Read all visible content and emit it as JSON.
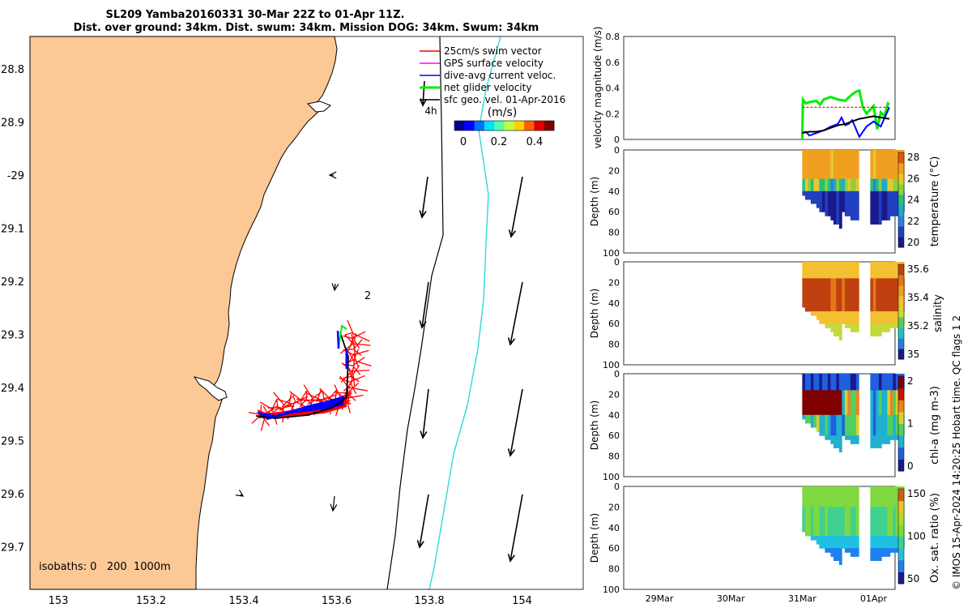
{
  "title": {
    "line1": "SL209 Yamba20160331 30-Mar 22Z to 01-Apr 11Z.",
    "line2": "Dist. over ground: 34km. Dist. swum: 34km. Mission DOG: 34km. Swum: 34km"
  },
  "map": {
    "lat_ticks": [
      "28.8",
      "28.9",
      "-29",
      "29.1",
      "29.2",
      "29.3",
      "29.4",
      "29.5",
      "29.6",
      "29.7"
    ],
    "lon_ticks": [
      "153",
      "153.2",
      "153.4",
      "153.6",
      "153.8",
      "154"
    ],
    "legend": [
      {
        "label": "25cm/s swim vector",
        "color": "#ff0000"
      },
      {
        "label": "GPS surface velocity",
        "color": "#ff00ff"
      },
      {
        "label": "dive-avg current veloc.",
        "color": "#0000ff"
      },
      {
        "label": "net glider velocity",
        "color": "#00ee00"
      },
      {
        "label": "sfc geo. vel. 01-Apr-2016",
        "color": "#000000"
      }
    ],
    "colorbar_label": "(m/s)",
    "colorbar_ticks": [
      "0",
      "0.2",
      "0.4"
    ],
    "isobaths_label": "isobaths: 0   200  1000m",
    "annotation_4h": "4h",
    "annotation_2": "2",
    "land_color": "#fcc896"
  },
  "chart_data": [
    {
      "type": "line",
      "ylabel": "velocity magnitude (m/s)",
      "ylim": [
        0,
        0.8
      ],
      "yticks": [
        "0",
        "0.2",
        "0.4",
        "0.6",
        "0.8"
      ],
      "x_categories": [
        "29Mar",
        "30Mar",
        "31Mar",
        "01Apr"
      ],
      "x_range_days": [
        28.5,
        32.3
      ],
      "series": [
        {
          "color": "#00ee00",
          "x": [
            31.0,
            31.01,
            31.05,
            31.1,
            31.2,
            31.25,
            31.3,
            31.4,
            31.5,
            31.6,
            31.7,
            31.75,
            31.8,
            31.85,
            31.9,
            32.0,
            32.05,
            32.1,
            32.15,
            32.2,
            32.22
          ],
          "y": [
            0.0,
            0.31,
            0.28,
            0.29,
            0.3,
            0.27,
            0.31,
            0.33,
            0.31,
            0.3,
            0.35,
            0.37,
            0.38,
            0.25,
            0.2,
            0.26,
            0.08,
            0.21,
            0.18,
            0.28,
            0.27
          ]
        },
        {
          "color": "#0000ff",
          "x": [
            31.0,
            31.05,
            31.1,
            31.2,
            31.3,
            31.4,
            31.5,
            31.55,
            31.6,
            31.65,
            31.7,
            31.8,
            31.9,
            32.0,
            32.1,
            32.22
          ],
          "y": [
            0.05,
            0.06,
            0.03,
            0.05,
            0.07,
            0.1,
            0.12,
            0.17,
            0.11,
            0.12,
            0.15,
            0.02,
            0.1,
            0.14,
            0.1,
            0.25
          ]
        },
        {
          "color": "#000000",
          "x": [
            31.0,
            31.1,
            31.2,
            31.3,
            31.4,
            31.5,
            31.6,
            31.7,
            31.8,
            31.9,
            32.0,
            32.1,
            32.22
          ],
          "y": [
            0.05,
            0.06,
            0.06,
            0.07,
            0.09,
            0.11,
            0.12,
            0.14,
            0.16,
            0.17,
            0.18,
            0.17,
            0.16
          ]
        },
        {
          "color": "#ff0000",
          "dash": true,
          "x": [
            31.0,
            31.8,
            32.22
          ],
          "y": [
            0.25,
            0.25,
            0.25
          ]
        }
      ]
    },
    {
      "type": "heatmap",
      "variable": "temperature",
      "ylabel": "Depth (m)",
      "cbar_label": "temperature (°C)",
      "cbar_ticks": [
        "20",
        "22",
        "24",
        "26",
        "28"
      ],
      "ylim": [
        100,
        0
      ],
      "yticks": [
        "0",
        "20",
        "40",
        "60",
        "80",
        "100"
      ],
      "scheme": "temp"
    },
    {
      "type": "heatmap",
      "variable": "salinity",
      "ylabel": "Depth (m)",
      "cbar_label": "salinity",
      "cbar_ticks": [
        "35",
        "35.2",
        "35.4",
        "35.6"
      ],
      "ylim": [
        100,
        0
      ],
      "yticks": [
        "0",
        "20",
        "40",
        "60",
        "80",
        "100"
      ],
      "scheme": "sal"
    },
    {
      "type": "heatmap",
      "variable": "chl-a",
      "ylabel": "Depth (m)",
      "cbar_label": "chl-a (mg m-3)",
      "cbar_ticks": [
        "0",
        "1",
        "2"
      ],
      "ylim": [
        100,
        0
      ],
      "yticks": [
        "0",
        "20",
        "40",
        "60",
        "80",
        "100"
      ],
      "scheme": "chl"
    },
    {
      "type": "heatmap",
      "variable": "oxygen",
      "ylabel": "Depth (m)",
      "cbar_label": "Ox. sat. ratio (%)",
      "cbar_ticks": [
        "50",
        "100",
        "150"
      ],
      "ylim": [
        100,
        0
      ],
      "yticks": [
        "0",
        "20",
        "40",
        "60",
        "80",
        "100"
      ],
      "scheme": "ox",
      "x_categories": [
        "29Mar",
        "30Mar",
        "31Mar",
        "01Apr"
      ]
    }
  ],
  "side_note": "© IMOS 15-Apr-2024 14:20:25 Hobart time. QC flags 1  2",
  "qc_flags_label": "QC flags 1  2"
}
